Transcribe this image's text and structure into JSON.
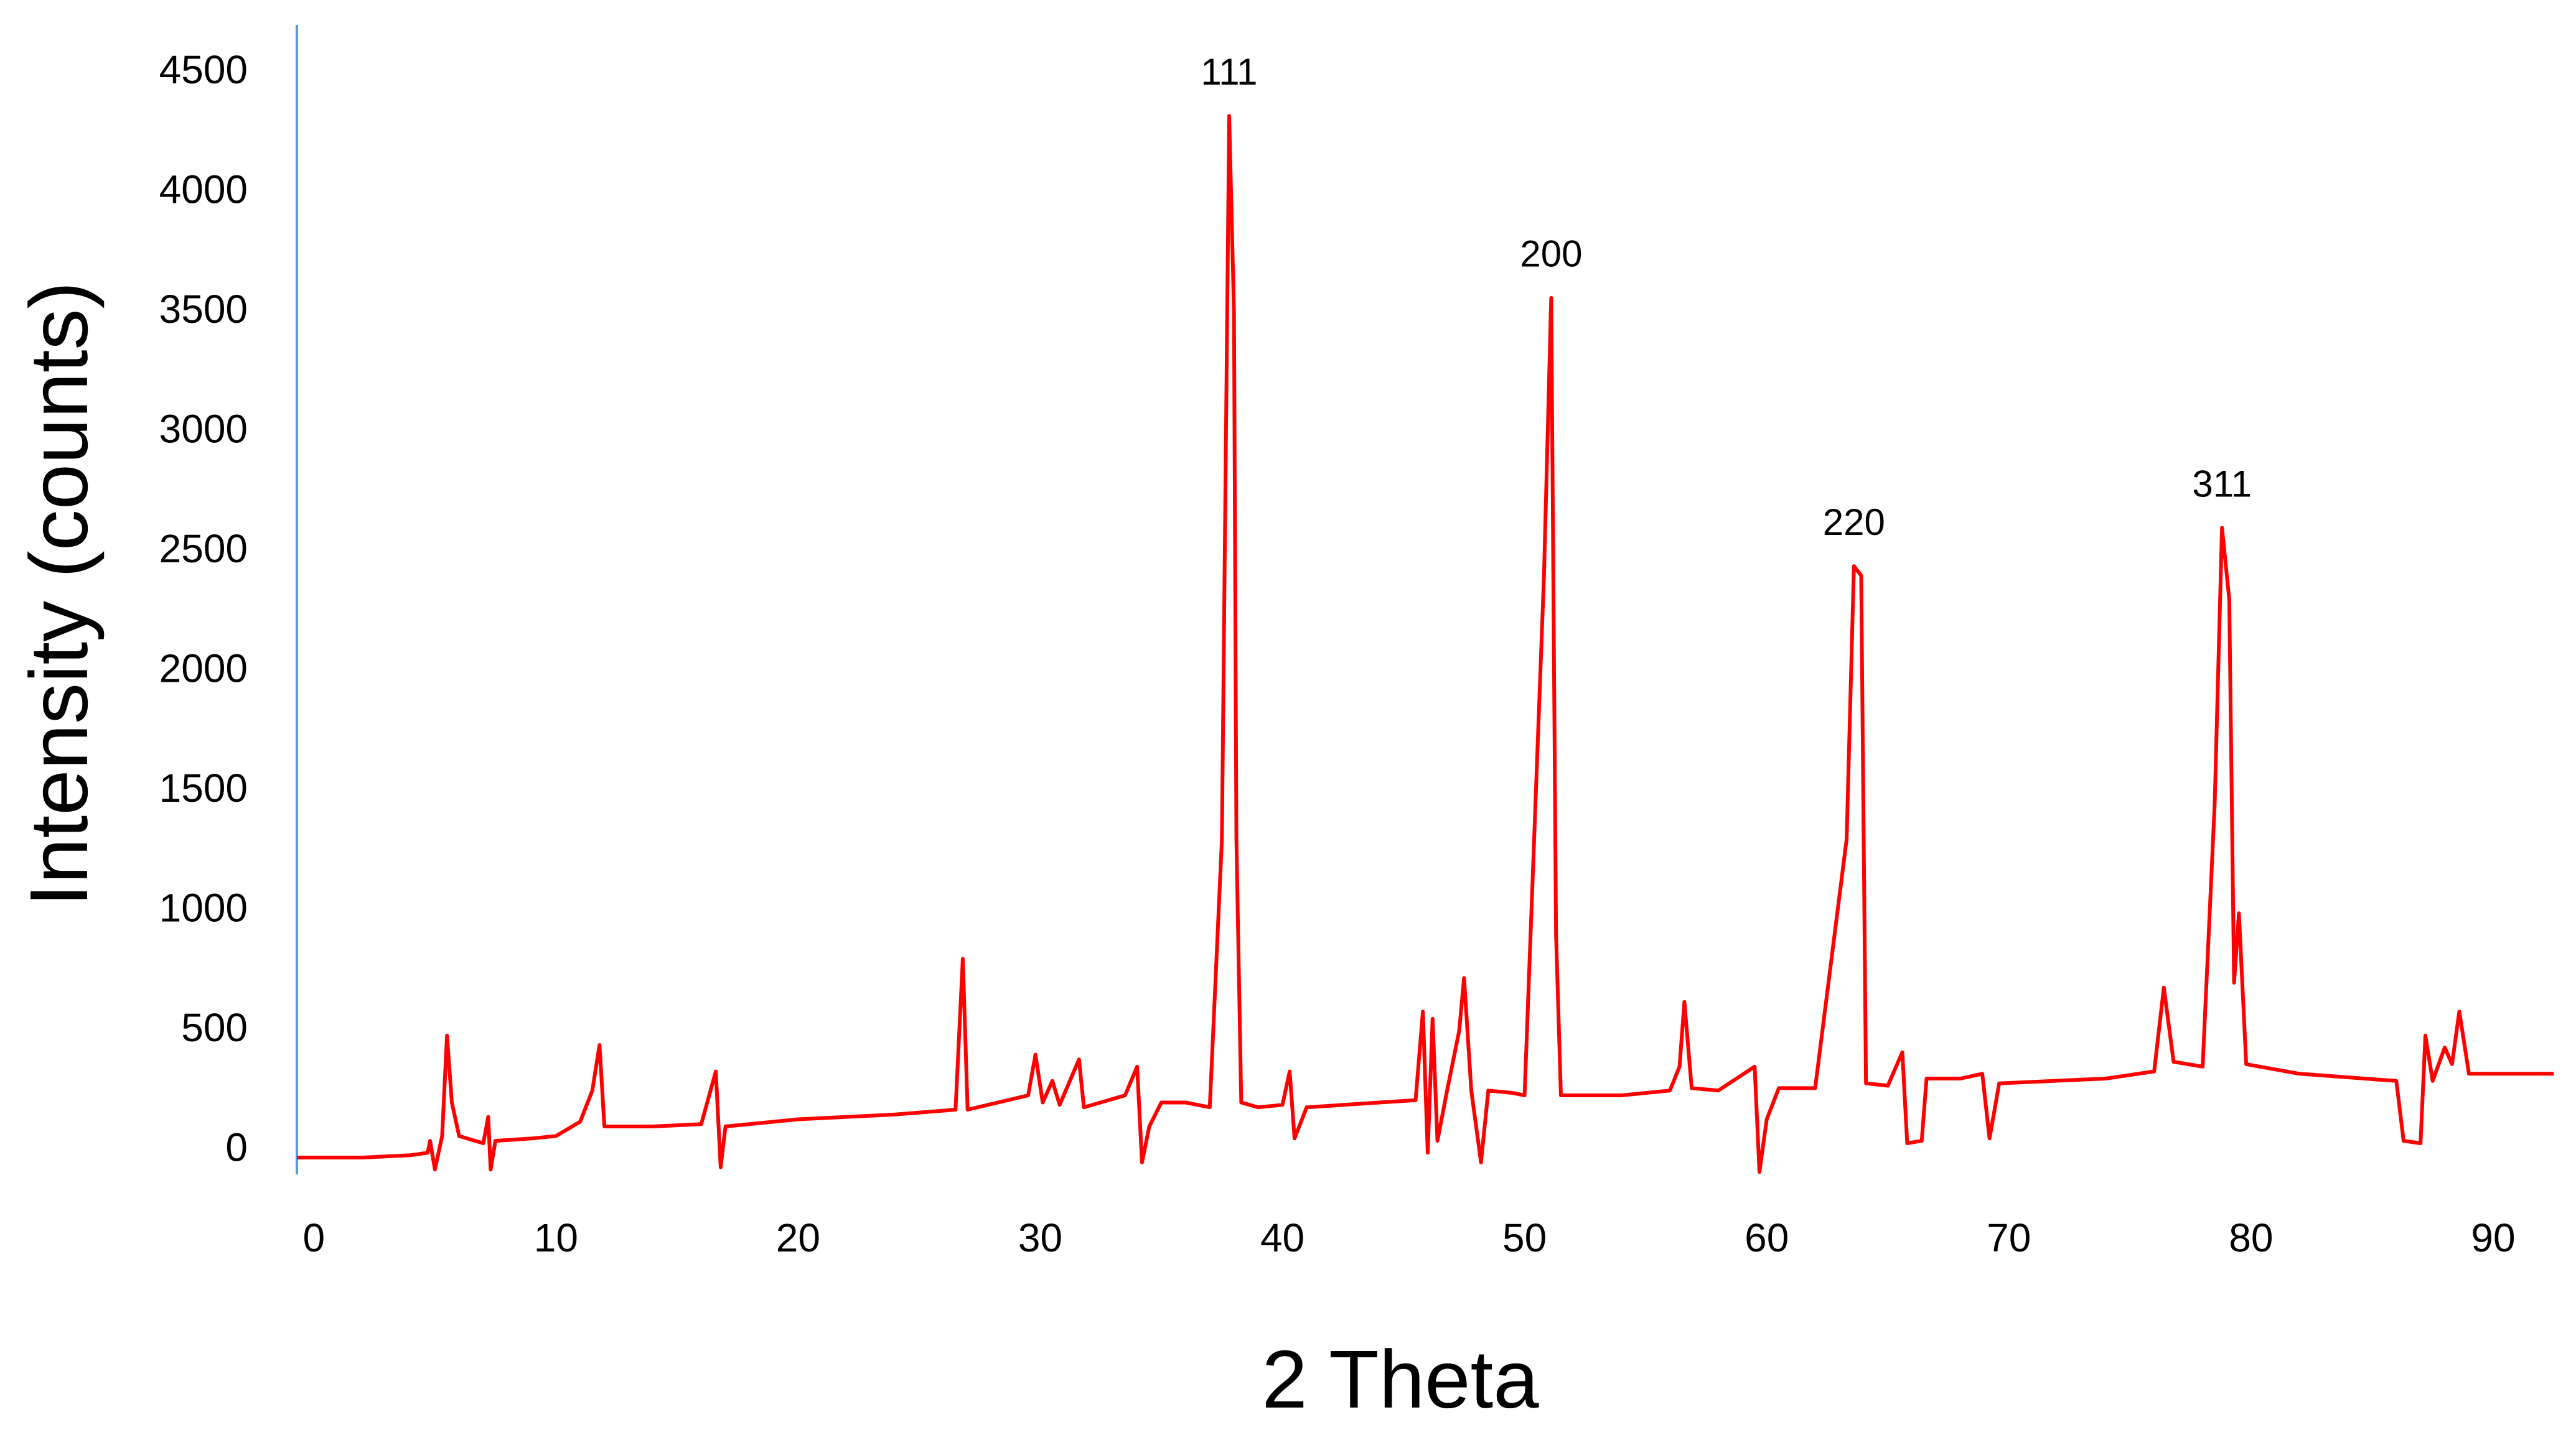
{
  "chart_data": {
    "type": "line",
    "x_label": "2 Theta",
    "y_label": "Intensity (counts)",
    "color": "#ff0000",
    "axis_color": "#5b9bd5",
    "xlim": [
      -0.7,
      92.7
    ],
    "xticks": [
      0,
      10,
      20,
      30,
      40,
      50,
      60,
      70,
      80,
      90
    ],
    "ylim": [
      -100,
      4700
    ],
    "yticks": [
      0,
      500,
      1000,
      1500,
      2000,
      2500,
      3000,
      3500,
      4000,
      4500
    ],
    "x": [
      -0.7,
      2,
      4,
      4.7,
      4.8,
      5,
      5.3,
      5.5,
      5.7,
      6,
      7,
      7.2,
      7.3,
      7.5,
      9,
      10,
      11,
      11.5,
      11.8,
      12,
      14,
      16,
      16.6,
      16.8,
      17,
      20,
      24,
      26.5,
      26.8,
      27,
      29.5,
      29.8,
      30.1,
      30.5,
      30.8,
      31.6,
      31.8,
      33.5,
      34,
      34.2,
      34.5,
      35,
      36,
      37,
      37.5,
      37.8,
      38,
      38.1,
      38.3,
      39,
      40,
      40.3,
      40.5,
      41,
      44,
      45.5,
      45.8,
      46,
      46.2,
      46.4,
      46.8,
      47.3,
      47.5,
      47.8,
      48.2,
      48.5,
      49.5,
      50,
      50.8,
      51.1,
      51.3,
      51.5,
      54,
      56,
      56.4,
      56.6,
      56.9,
      58,
      59.5,
      59.7,
      60,
      60.5,
      62,
      63.3,
      63.6,
      63.9,
      64.1,
      65,
      65.6,
      65.8,
      66.4,
      66.6,
      68,
      68.9,
      69.2,
      69.6,
      74,
      76,
      76.4,
      76.8,
      78,
      78.5,
      78.8,
      79.1,
      79.3,
      79.5,
      79.8,
      82,
      86,
      86.3,
      87,
      87.2,
      87.5,
      88,
      88.3,
      88.6,
      89,
      92.5
    ],
    "values": [
      -30,
      -30,
      -20,
      -10,
      40,
      -80,
      60,
      480,
      200,
      60,
      30,
      140,
      -80,
      40,
      50,
      60,
      120,
      250,
      440,
      100,
      100,
      110,
      330,
      -70,
      100,
      130,
      150,
      170,
      800,
      170,
      230,
      400,
      200,
      290,
      190,
      380,
      180,
      230,
      350,
      -50,
      100,
      200,
      200,
      180,
      1300,
      4320,
      3500,
      1300,
      200,
      180,
      190,
      330,
      50,
      180,
      200,
      210,
      580,
      -10,
      550,
      40,
      250,
      500,
      720,
      250,
      -50,
      250,
      240,
      230,
      2400,
      3560,
      900,
      230,
      230,
      250,
      350,
      620,
      260,
      250,
      350,
      -90,
      130,
      260,
      260,
      1300,
      2440,
      2400,
      280,
      270,
      410,
      30,
      40,
      300,
      300,
      320,
      50,
      280,
      300,
      330,
      680,
      370,
      350,
      1450,
      2600,
      2300,
      700,
      990,
      360,
      320,
      290,
      40,
      30,
      480,
      290,
      430,
      360,
      580,
      320,
      320
    ],
    "annotations": [
      {
        "text": "111",
        "x": 37.8,
        "y": 4320
      },
      {
        "text": "200",
        "x": 51.1,
        "y": 3560
      },
      {
        "text": "220",
        "x": 63.6,
        "y": 2440
      },
      {
        "text": "311",
        "x": 78.8,
        "y": 2600
      }
    ]
  }
}
